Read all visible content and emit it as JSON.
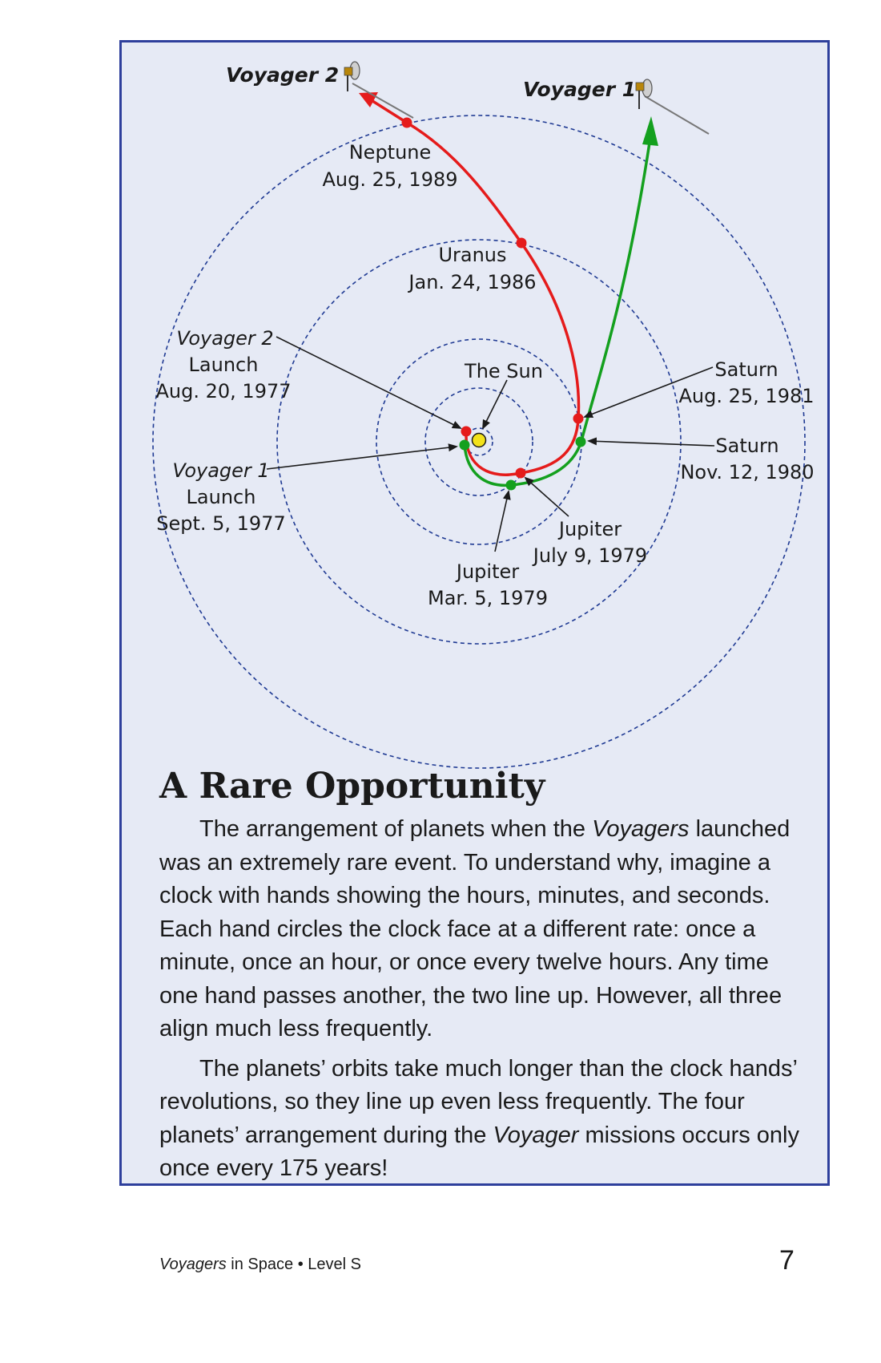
{
  "diagram": {
    "voyager2_title": "Voyager 2",
    "voyager1_title": "Voyager 1",
    "neptune": {
      "name": "Neptune",
      "date": "Aug. 25, 1989"
    },
    "uranus": {
      "name": "Uranus",
      "date": "Jan. 24, 1986"
    },
    "sun": "The Sun",
    "voyager2_launch": {
      "craft": "Voyager 2",
      "event": "Launch",
      "date": "Aug. 20, 1977"
    },
    "voyager1_launch": {
      "craft": "Voyager 1",
      "event": "Launch",
      "date": "Sept. 5, 1977"
    },
    "saturn_v2": {
      "name": "Saturn",
      "date": "Aug. 25, 1981"
    },
    "saturn_v1": {
      "name": "Saturn",
      "date": "Nov. 12, 1980"
    },
    "jupiter_v2": {
      "name": "Jupiter",
      "date": "July 9, 1979"
    },
    "jupiter_v1": {
      "name": "Jupiter",
      "date": "Mar. 5, 1979"
    },
    "colors": {
      "voyager2_path": "#e51b1b",
      "voyager1_path": "#14a01e",
      "sun": "#f3e21a",
      "orbit": "#1f3a93"
    }
  },
  "article": {
    "heading": "A Rare Opportunity",
    "p1_before": "The arrangement of planets when the ",
    "p1_italic": "Voyagers",
    "p1_after": " launched was an extremely rare event. To understand why, imagine a clock with hands showing the hours, minutes, and seconds. Each hand circles the clock face at a different rate: once a minute, once an hour, or once every twelve hours. Any time one hand passes another, the two line up. However, all three align much less frequently.",
    "p2_before": "The planets’ orbits take much longer than the clock hands’ revolutions, so they line up even less frequently. The four planets’ arrangement during the ",
    "p2_italic": "Voyager",
    "p2_after": " missions occurs only once every 175 years!"
  },
  "footer": {
    "book_italic": "Voyagers",
    "book_rest": " in Space • Level S",
    "page_number": "7"
  }
}
